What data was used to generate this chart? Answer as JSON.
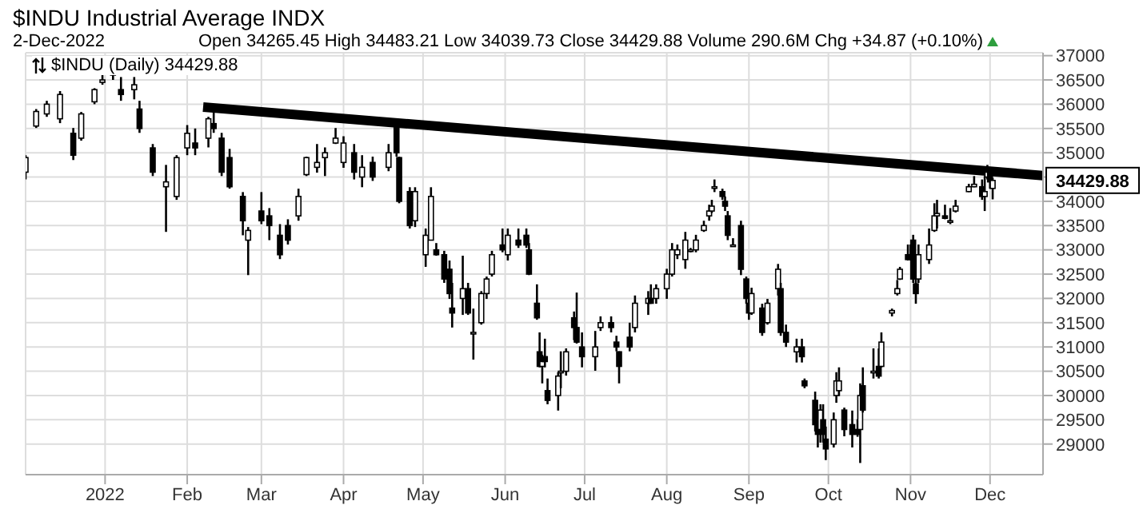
{
  "chart_data": {
    "type": "candlestick",
    "title": "$INDU Industrial Average INDX",
    "subtitle": "2-Dec-2022",
    "annotations": [
      "Open 34265.45 High 34483.21 Low 34039.73 Close 34429.88 Volume 290.6M Chg +34.87 (+0.10%)",
      "$INDU (Daily) 34429.88",
      {
        "text": "34429.88",
        "x": "2022-12-21",
        "y": 34429.88
      }
    ],
    "color": "#000000",
    "x": [
      "2021-12-02",
      "2021-12-06",
      "2021-12-10",
      "2021-12-15",
      "2021-12-20",
      "2021-12-23",
      "2021-12-28",
      "2021-12-31",
      "2022-01-04",
      "2022-01-07",
      "2022-01-12",
      "2022-01-14",
      "2022-01-19",
      "2022-01-24",
      "2022-01-28",
      "2022-02-01",
      "2022-02-04",
      "2022-02-09",
      "2022-02-11",
      "2022-02-14",
      "2022-02-17",
      "2022-02-22",
      "2022-02-24",
      "2022-03-01",
      "2022-03-04",
      "2022-03-08",
      "2022-03-11",
      "2022-03-15",
      "2022-03-18",
      "2022-03-22",
      "2022-03-25",
      "2022-03-29",
      "2022-04-01",
      "2022-04-05",
      "2022-04-08",
      "2022-04-12",
      "2022-04-18",
      "2022-04-21",
      "2022-04-22",
      "2022-04-26",
      "2022-04-28",
      "2022-05-02",
      "2022-05-04",
      "2022-05-06",
      "2022-05-09",
      "2022-05-11",
      "2022-05-12",
      "2022-05-16",
      "2022-05-18",
      "2022-05-20",
      "2022-05-23",
      "2022-05-25",
      "2022-05-27",
      "2022-05-31",
      "2022-06-02",
      "2022-06-06",
      "2022-06-09",
      "2022-06-10",
      "2022-06-13",
      "2022-06-14",
      "2022-06-15",
      "2022-06-16",
      "2022-06-17",
      "2022-06-21",
      "2022-06-22",
      "2022-06-24",
      "2022-06-27",
      "2022-06-28",
      "2022-06-30",
      "2022-07-05",
      "2022-07-07",
      "2022-07-11",
      "2022-07-13",
      "2022-07-14",
      "2022-07-18",
      "2022-07-20",
      "2022-07-25",
      "2022-07-26",
      "2022-07-28",
      "2022-08-01",
      "2022-08-03",
      "2022-08-05",
      "2022-08-08",
      "2022-08-10",
      "2022-08-12",
      "2022-08-15",
      "2022-08-17",
      "2022-08-18",
      "2022-08-19",
      "2022-08-22",
      "2022-08-23",
      "2022-08-24",
      "2022-08-26",
      "2022-08-29",
      "2022-08-31",
      "2022-09-01",
      "2022-09-02",
      "2022-09-06",
      "2022-09-08",
      "2022-09-12",
      "2022-09-13",
      "2022-09-15",
      "2022-09-19",
      "2022-09-21",
      "2022-09-22",
      "2022-09-26",
      "2022-09-27",
      "2022-09-28",
      "2022-09-29",
      "2022-09-30",
      "2022-10-03",
      "2022-10-04",
      "2022-10-05",
      "2022-10-07",
      "2022-10-10",
      "2022-10-12",
      "2022-10-13",
      "2022-10-14",
      "2022-10-18",
      "2022-10-20",
      "2022-10-21",
      "2022-10-25",
      "2022-10-27",
      "2022-10-28",
      "2022-10-31",
      "2022-11-01",
      "2022-11-02",
      "2022-11-03",
      "2022-11-04",
      "2022-11-08",
      "2022-11-10",
      "2022-11-11",
      "2022-11-14",
      "2022-11-16",
      "2022-11-18",
      "2022-11-23",
      "2022-11-25",
      "2022-11-28",
      "2022-11-29",
      "2022-11-30",
      "2022-12-01",
      "2022-12-02"
    ],
    "ohlc": [
      [
        34600,
        34950,
        34450,
        34900
      ],
      [
        35550,
        35900,
        35510,
        35850
      ],
      [
        35800,
        36070,
        35740,
        36000
      ],
      [
        35700,
        36270,
        35610,
        36200
      ],
      [
        35400,
        35510,
        34850,
        34950
      ],
      [
        35300,
        35840,
        35250,
        35800
      ],
      [
        36050,
        36330,
        36000,
        36300
      ],
      [
        36450,
        36600,
        36400,
        36500
      ],
      [
        36600,
        36760,
        36500,
        36700
      ],
      [
        36300,
        36560,
        36070,
        36200
      ],
      [
        36300,
        36560,
        36100,
        36400
      ],
      [
        35900,
        36070,
        35410,
        35500
      ],
      [
        35100,
        35180,
        34520,
        34600
      ],
      [
        34300,
        34750,
        33370,
        34400
      ],
      [
        34100,
        34950,
        34030,
        34900
      ],
      [
        35100,
        35570,
        34950,
        35400
      ],
      [
        35200,
        35500,
        34950,
        35100
      ],
      [
        35300,
        35740,
        35110,
        35700
      ],
      [
        35600,
        36000,
        35410,
        35500
      ],
      [
        35300,
        35410,
        34520,
        34600
      ],
      [
        34900,
        35080,
        34260,
        34300
      ],
      [
        34100,
        34190,
        33300,
        33600
      ],
      [
        33200,
        33470,
        32480,
        33400
      ],
      [
        33800,
        34190,
        33530,
        33600
      ],
      [
        33700,
        33860,
        33200,
        33500
      ],
      [
        33300,
        33530,
        32810,
        32900
      ],
      [
        33500,
        33630,
        33110,
        33200
      ],
      [
        33700,
        34260,
        33600,
        34100
      ],
      [
        34550,
        34920,
        34520,
        34900
      ],
      [
        34700,
        35180,
        34590,
        34800
      ],
      [
        34900,
        35110,
        34520,
        35000
      ],
      [
        35200,
        35510,
        35180,
        35300
      ],
      [
        34800,
        35340,
        34690,
        35200
      ],
      [
        35000,
        35180,
        34450,
        34600
      ],
      [
        34500,
        34950,
        34290,
        34700
      ],
      [
        34800,
        34920,
        34420,
        34500
      ],
      [
        34700,
        35180,
        34620,
        35000
      ],
      [
        35600,
        35670,
        34920,
        35000
      ],
      [
        34900,
        34920,
        33960,
        34000
      ],
      [
        34200,
        34290,
        33440,
        33500
      ],
      [
        33600,
        34290,
        33470,
        34200
      ],
      [
        32900,
        33440,
        32650,
        33300
      ],
      [
        33200,
        34290,
        33200,
        34100
      ],
      [
        33000,
        33140,
        32880,
        32900
      ],
      [
        32900,
        32980,
        32320,
        32400
      ],
      [
        32600,
        32780,
        31990,
        32100
      ],
      [
        31800,
        32320,
        31400,
        31700
      ],
      [
        32000,
        32880,
        31660,
        32200
      ],
      [
        32200,
        32320,
        31660,
        31700
      ],
      [
        31300,
        31790,
        30740,
        31300
      ],
      [
        31500,
        32150,
        31460,
        32100
      ],
      [
        32100,
        32450,
        31990,
        32400
      ],
      [
        32500,
        32980,
        32450,
        32900
      ],
      [
        33100,
        33440,
        32950,
        33000
      ],
      [
        32900,
        33440,
        32780,
        33300
      ],
      [
        33200,
        33440,
        33040,
        33100
      ],
      [
        33300,
        33440,
        33040,
        33100
      ],
      [
        33000,
        33140,
        32480,
        32500
      ],
      [
        31900,
        32290,
        31560,
        31600
      ],
      [
        30900,
        31300,
        30580,
        30600
      ],
      [
        30600,
        30840,
        30250,
        30700
      ],
      [
        30800,
        31170,
        30580,
        30700
      ],
      [
        30100,
        30350,
        29820,
        29900
      ],
      [
        30000,
        30480,
        29690,
        30400
      ],
      [
        30500,
        30910,
        30150,
        30500
      ],
      [
        30500,
        30970,
        30410,
        30900
      ],
      [
        31600,
        31730,
        31140,
        31400
      ],
      [
        31400,
        32120,
        31070,
        31100
      ],
      [
        31000,
        31300,
        30580,
        30800
      ],
      [
        30800,
        31330,
        30510,
        31000
      ],
      [
        31400,
        31630,
        31330,
        31500
      ],
      [
        31500,
        31630,
        31300,
        31400
      ],
      [
        31100,
        31230,
        30910,
        31000
      ],
      [
        30900,
        30910,
        30250,
        30600
      ],
      [
        31200,
        31500,
        30910,
        31000
      ],
      [
        31400,
        32060,
        31300,
        31900
      ],
      [
        31900,
        32150,
        31660,
        32000
      ],
      [
        32000,
        32290,
        31890,
        31900
      ],
      [
        32000,
        32290,
        31890,
        32200
      ],
      [
        32200,
        32610,
        31990,
        32500
      ],
      [
        32500,
        33140,
        32450,
        33000
      ],
      [
        32900,
        33110,
        32810,
        33000
      ],
      [
        32800,
        33370,
        32610,
        33200
      ],
      [
        32980,
        33040,
        32950,
        33000
      ],
      [
        33000,
        33310,
        32950,
        33200
      ],
      [
        33400,
        33600,
        33370,
        33500
      ],
      [
        33700,
        33930,
        33600,
        33800
      ],
      [
        33800,
        34030,
        33760,
        33900
      ],
      [
        34300,
        34450,
        34190,
        34300
      ],
      [
        34200,
        34260,
        34030,
        34100
      ],
      [
        34000,
        34100,
        33800,
        33900
      ],
      [
        33700,
        33800,
        33200,
        33300
      ],
      [
        33100,
        33240,
        33080,
        33100
      ],
      [
        33500,
        33600,
        32480,
        32600
      ],
      [
        32400,
        32450,
        31890,
        32000
      ],
      [
        31900,
        31990,
        31560,
        31700
      ],
      [
        31700,
        32220,
        31660,
        32100
      ],
      [
        31800,
        31890,
        31230,
        31300
      ],
      [
        31500,
        31990,
        31460,
        31900
      ],
      [
        32200,
        32710,
        32060,
        32600
      ],
      [
        32200,
        32320,
        31230,
        31300
      ],
      [
        31300,
        31460,
        31000,
        31100
      ],
      [
        30900,
        31170,
        30680,
        31000
      ],
      [
        31000,
        31170,
        30680,
        30800
      ],
      [
        30300,
        30350,
        30150,
        30200
      ],
      [
        29900,
        30080,
        29260,
        29400
      ],
      [
        29500,
        29690,
        28930,
        29200
      ],
      [
        29300,
        29820,
        29030,
        29700
      ],
      [
        29500,
        29820,
        29030,
        29200
      ],
      [
        29100,
        29360,
        28670,
        28900
      ],
      [
        29000,
        29650,
        28930,
        29500
      ],
      [
        30000,
        30480,
        29850,
        30300
      ],
      [
        30100,
        30580,
        29990,
        30300
      ],
      [
        29700,
        29750,
        29160,
        29300
      ],
      [
        29400,
        29690,
        28930,
        29200
      ],
      [
        29300,
        29510,
        29150,
        29200
      ],
      [
        29300,
        30250,
        28610,
        30000
      ],
      [
        30200,
        30580,
        29650,
        29700
      ],
      [
        30500,
        30970,
        30350,
        30500
      ],
      [
        30600,
        30970,
        30350,
        30400
      ],
      [
        30600,
        31300,
        30580,
        31100
      ],
      [
        31700,
        31790,
        31630,
        31750
      ],
      [
        32100,
        32380,
        32060,
        32200
      ],
      [
        32400,
        32650,
        32380,
        32600
      ],
      [
        32900,
        33110,
        32780,
        32800
      ],
      [
        32900,
        33110,
        32780,
        32850
      ],
      [
        33200,
        33310,
        32320,
        32400
      ],
      [
        32300,
        32610,
        31890,
        32100
      ],
      [
        32400,
        33110,
        32320,
        32900
      ],
      [
        32800,
        33440,
        32710,
        33100
      ],
      [
        33400,
        33960,
        33370,
        33700
      ],
      [
        33700,
        34030,
        33440,
        33750
      ],
      [
        33700,
        33930,
        33630,
        33650
      ],
      [
        33600,
        33860,
        33530,
        33600
      ],
      [
        33800,
        34030,
        33770,
        33900
      ],
      [
        34200,
        34360,
        34190,
        34300
      ],
      [
        34300,
        34520,
        34290,
        34350
      ],
      [
        34300,
        34450,
        34030,
        34100
      ],
      [
        34100,
        34520,
        33800,
        34200
      ],
      [
        34500,
        34750,
        34450,
        34600
      ],
      [
        34600,
        34690,
        34260,
        34400
      ],
      [
        34265.45,
        34483.21,
        34039.73,
        34429.88
      ]
    ],
    "series": [
      {
        "type": "line",
        "x": [
          "2022-02-07",
          "2022-12-21"
        ],
        "values": [
          35940,
          34530
        ],
        "color": "#000000"
      }
    ],
    "xlim": [
      "2021-12-02",
      "2022-12-21"
    ],
    "xticks": [
      {
        "value": "2022-01-01",
        "label": "2022"
      },
      {
        "value": "2022-02-01",
        "label": "Feb"
      },
      {
        "value": "2022-03-01",
        "label": "Mar"
      },
      {
        "value": "2022-04-01",
        "label": "Apr"
      },
      {
        "value": "2022-05-01",
        "label": "May"
      },
      {
        "value": "2022-06-01",
        "label": "Jun"
      },
      {
        "value": "2022-07-01",
        "label": "Jul"
      },
      {
        "value": "2022-08-01",
        "label": "Aug"
      },
      {
        "value": "2022-09-01",
        "label": "Sep"
      },
      {
        "value": "2022-10-01",
        "label": "Oct"
      },
      {
        "value": "2022-11-01",
        "label": "Nov"
      },
      {
        "value": "2022-12-01",
        "label": "Dec"
      }
    ],
    "ylim": [
      28370,
      37060
    ],
    "yticks": [
      29000,
      29500,
      30000,
      30500,
      31000,
      31500,
      32000,
      32500,
      33000,
      33500,
      34000,
      {
        "value": 34500,
        "label": null
      },
      35000,
      35500,
      36000,
      36500,
      37000
    ],
    "grid": true
  }
}
